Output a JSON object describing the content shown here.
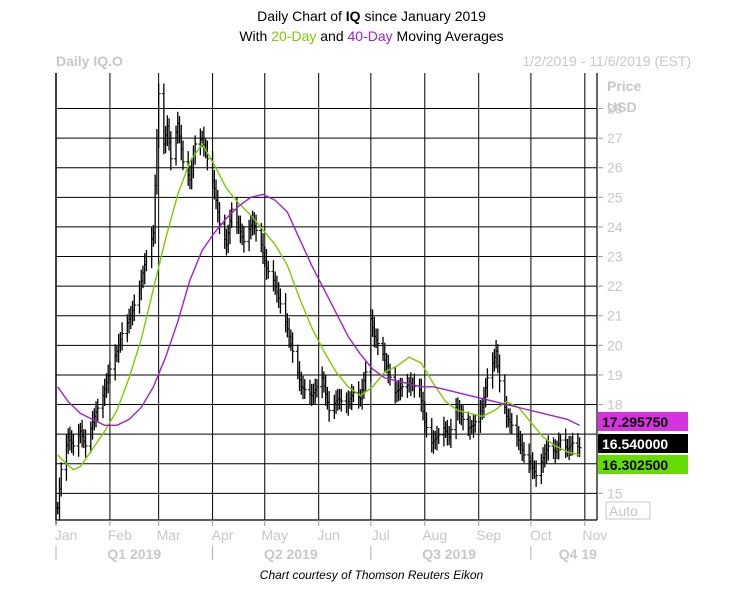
{
  "title": {
    "line1_prefix": "Daily Chart of ",
    "line1_symbol": "IQ",
    "line1_suffix": " since January 2019",
    "line2_a": "With ",
    "line2_b": "20-Day",
    "line2_c": " and ",
    "line2_d": "40-Day",
    "line2_e": " Moving Averages"
  },
  "ticker_label": "Daily IQ.O",
  "date_range": "1/2/2019 - 11/6/2019 (EST)",
  "credit": "Chart courtesy of Thomson Reuters Eikon",
  "colors": {
    "price": "#000000",
    "ma20": "#7ccc00",
    "ma40": "#a020d0",
    "grid": "#000000",
    "axis_text": "#c8c8c8"
  },
  "chart_data": {
    "type": "line",
    "title": "Daily Chart of IQ since January 2019",
    "subtitle": "With 20-Day and 40-Day Moving Averages",
    "ylabel": "Price USD",
    "y_axis_title_lines": [
      "Price",
      "USD"
    ],
    "ylim": [
      14.1,
      29.2
    ],
    "yticks": [
      15,
      16,
      17,
      18,
      19,
      20,
      21,
      22,
      23,
      24,
      25,
      26,
      27,
      28
    ],
    "y_tick_labels": [
      "15",
      "",
      "",
      "18",
      "19",
      "20",
      "21",
      "22",
      "23",
      "24",
      "25",
      "26",
      "27",
      "28"
    ],
    "x_months": [
      "Jan",
      "Feb",
      "Mar",
      "Apr",
      "May",
      "Jun",
      "Jul",
      "Aug",
      "Sep",
      "Oct",
      "Nov"
    ],
    "x_quarters": [
      "Q1 2019",
      "Q2 2019",
      "Q3 2019",
      "Q4 19"
    ],
    "auto_label": "Auto",
    "grid": true,
    "last_values": {
      "ma40": "17.295750",
      "price": "16.540000",
      "ma20": "16.302500"
    },
    "price_anchors": [
      [
        "2019-01-02",
        14.5
      ],
      [
        "2019-01-04",
        15.8
      ],
      [
        "2019-01-08",
        16.9
      ],
      [
        "2019-01-11",
        16.6
      ],
      [
        "2019-01-15",
        17.1
      ],
      [
        "2019-01-18",
        16.6
      ],
      [
        "2019-01-23",
        17.6
      ],
      [
        "2019-01-28",
        18.3
      ],
      [
        "2019-02-01",
        19.2
      ],
      [
        "2019-02-05",
        19.8
      ],
      [
        "2019-02-08",
        20.4
      ],
      [
        "2019-02-13",
        21.0
      ],
      [
        "2019-02-18",
        21.9
      ],
      [
        "2019-02-22",
        23.0
      ],
      [
        "2019-02-26",
        23.8
      ],
      [
        "2019-02-28",
        27.0
      ],
      [
        "2019-03-01",
        28.5
      ],
      [
        "2019-03-04",
        26.8
      ],
      [
        "2019-03-06",
        27.4
      ],
      [
        "2019-03-08",
        26.3
      ],
      [
        "2019-03-12",
        27.5
      ],
      [
        "2019-03-15",
        26.2
      ],
      [
        "2019-03-19",
        25.6
      ],
      [
        "2019-03-22",
        26.8
      ],
      [
        "2019-03-26",
        27.0
      ],
      [
        "2019-03-29",
        26.3
      ],
      [
        "2019-04-02",
        25.3
      ],
      [
        "2019-04-05",
        24.1
      ],
      [
        "2019-04-09",
        23.4
      ],
      [
        "2019-04-12",
        24.6
      ],
      [
        "2019-04-16",
        24.0
      ],
      [
        "2019-04-19",
        23.5
      ],
      [
        "2019-04-24",
        24.2
      ],
      [
        "2019-04-29",
        23.4
      ],
      [
        "2019-05-02",
        22.6
      ],
      [
        "2019-05-06",
        22.2
      ],
      [
        "2019-05-09",
        21.6
      ],
      [
        "2019-05-13",
        20.8
      ],
      [
        "2019-05-17",
        19.8
      ],
      [
        "2019-05-22",
        18.6
      ],
      [
        "2019-05-28",
        18.3
      ],
      [
        "2019-06-03",
        18.9
      ],
      [
        "2019-06-07",
        17.8
      ],
      [
        "2019-06-12",
        18.2
      ],
      [
        "2019-06-17",
        18.0
      ],
      [
        "2019-06-21",
        18.4
      ],
      [
        "2019-06-25",
        18.2
      ],
      [
        "2019-06-28",
        19.1
      ],
      [
        "2019-07-01",
        20.9
      ],
      [
        "2019-07-03",
        20.3
      ],
      [
        "2019-07-08",
        19.7
      ],
      [
        "2019-07-11",
        19.1
      ],
      [
        "2019-07-15",
        18.4
      ],
      [
        "2019-07-19",
        18.6
      ],
      [
        "2019-07-24",
        18.7
      ],
      [
        "2019-07-29",
        18.5
      ],
      [
        "2019-08-01",
        17.4
      ],
      [
        "2019-08-05",
        16.7
      ],
      [
        "2019-08-08",
        16.9
      ],
      [
        "2019-08-12",
        17.2
      ],
      [
        "2019-08-15",
        16.9
      ],
      [
        "2019-08-19",
        17.9
      ],
      [
        "2019-08-22",
        17.6
      ],
      [
        "2019-08-26",
        17.2
      ],
      [
        "2019-08-29",
        17.3
      ],
      [
        "2019-09-03",
        17.9
      ],
      [
        "2019-09-06",
        18.9
      ],
      [
        "2019-09-09",
        19.4
      ],
      [
        "2019-09-11",
        19.8
      ],
      [
        "2019-09-13",
        18.8
      ],
      [
        "2019-09-17",
        17.6
      ],
      [
        "2019-09-20",
        17.3
      ],
      [
        "2019-09-24",
        16.8
      ],
      [
        "2019-09-27",
        16.3
      ],
      [
        "2019-10-01",
        16.0
      ],
      [
        "2019-10-04",
        15.6
      ],
      [
        "2019-10-08",
        16.2
      ],
      [
        "2019-10-11",
        16.6
      ],
      [
        "2019-10-15",
        16.4
      ],
      [
        "2019-10-18",
        16.8
      ],
      [
        "2019-10-22",
        16.5
      ],
      [
        "2019-10-25",
        16.7
      ],
      [
        "2019-10-29",
        16.54
      ]
    ],
    "series": [
      {
        "name": "20-Day",
        "color": "#7ccc00",
        "points": [
          [
            "2019-01-02",
            16.3
          ],
          [
            "2019-01-07",
            16.0
          ],
          [
            "2019-01-11",
            15.8
          ],
          [
            "2019-01-15",
            15.9
          ],
          [
            "2019-01-22",
            16.5
          ],
          [
            "2019-01-29",
            17.1
          ],
          [
            "2019-02-05",
            17.8
          ],
          [
            "2019-02-12",
            18.9
          ],
          [
            "2019-02-19",
            20.2
          ],
          [
            "2019-02-26",
            21.9
          ],
          [
            "2019-03-05",
            23.6
          ],
          [
            "2019-03-12",
            25.1
          ],
          [
            "2019-03-19",
            26.2
          ],
          [
            "2019-03-26",
            26.8
          ],
          [
            "2019-04-02",
            26.1
          ],
          [
            "2019-04-09",
            25.3
          ],
          [
            "2019-04-16",
            24.8
          ],
          [
            "2019-04-23",
            24.4
          ],
          [
            "2019-04-30",
            23.9
          ],
          [
            "2019-05-07",
            23.4
          ],
          [
            "2019-05-14",
            22.7
          ],
          [
            "2019-05-21",
            21.6
          ],
          [
            "2019-05-28",
            20.6
          ],
          [
            "2019-06-04",
            19.8
          ],
          [
            "2019-06-11",
            19.1
          ],
          [
            "2019-06-18",
            18.6
          ],
          [
            "2019-06-25",
            18.3
          ],
          [
            "2019-07-02",
            18.6
          ],
          [
            "2019-07-09",
            19.1
          ],
          [
            "2019-07-16",
            19.3
          ],
          [
            "2019-07-23",
            19.6
          ],
          [
            "2019-07-30",
            19.4
          ],
          [
            "2019-08-06",
            18.7
          ],
          [
            "2019-08-13",
            18.1
          ],
          [
            "2019-08-20",
            17.8
          ],
          [
            "2019-08-27",
            17.7
          ],
          [
            "2019-09-03",
            17.6
          ],
          [
            "2019-09-10",
            17.8
          ],
          [
            "2019-09-17",
            18.1
          ],
          [
            "2019-09-24",
            17.9
          ],
          [
            "2019-10-01",
            17.4
          ],
          [
            "2019-10-08",
            16.9
          ],
          [
            "2019-10-15",
            16.6
          ],
          [
            "2019-10-22",
            16.4
          ],
          [
            "2019-10-29",
            16.3025
          ]
        ]
      },
      {
        "name": "40-Day",
        "color": "#a020d0",
        "points": [
          [
            "2019-01-02",
            18.6
          ],
          [
            "2019-01-08",
            18.1
          ],
          [
            "2019-01-15",
            17.7
          ],
          [
            "2019-01-22",
            17.5
          ],
          [
            "2019-01-29",
            17.3
          ],
          [
            "2019-02-05",
            17.3
          ],
          [
            "2019-02-12",
            17.5
          ],
          [
            "2019-02-19",
            17.9
          ],
          [
            "2019-02-26",
            18.6
          ],
          [
            "2019-03-05",
            19.6
          ],
          [
            "2019-03-12",
            20.8
          ],
          [
            "2019-03-19",
            22.2
          ],
          [
            "2019-03-26",
            23.2
          ],
          [
            "2019-04-02",
            23.8
          ],
          [
            "2019-04-09",
            24.3
          ],
          [
            "2019-04-16",
            24.7
          ],
          [
            "2019-04-23",
            25.0
          ],
          [
            "2019-04-30",
            25.1
          ],
          [
            "2019-05-07",
            24.9
          ],
          [
            "2019-05-14",
            24.5
          ],
          [
            "2019-05-21",
            23.6
          ],
          [
            "2019-05-28",
            22.7
          ],
          [
            "2019-06-04",
            21.9
          ],
          [
            "2019-06-11",
            21.1
          ],
          [
            "2019-06-18",
            20.3
          ],
          [
            "2019-06-25",
            19.7
          ],
          [
            "2019-07-02",
            19.2
          ],
          [
            "2019-07-09",
            18.9
          ],
          [
            "2019-07-16",
            18.8
          ],
          [
            "2019-07-23",
            18.7
          ],
          [
            "2019-07-30",
            18.6
          ],
          [
            "2019-08-06",
            18.6
          ],
          [
            "2019-08-13",
            18.5
          ],
          [
            "2019-08-20",
            18.4
          ],
          [
            "2019-08-27",
            18.3
          ],
          [
            "2019-09-03",
            18.2
          ],
          [
            "2019-09-10",
            18.1
          ],
          [
            "2019-09-17",
            18.0
          ],
          [
            "2019-09-24",
            17.9
          ],
          [
            "2019-10-01",
            17.8
          ],
          [
            "2019-10-08",
            17.7
          ],
          [
            "2019-10-15",
            17.6
          ],
          [
            "2019-10-22",
            17.5
          ],
          [
            "2019-10-29",
            17.29575
          ]
        ]
      }
    ]
  }
}
